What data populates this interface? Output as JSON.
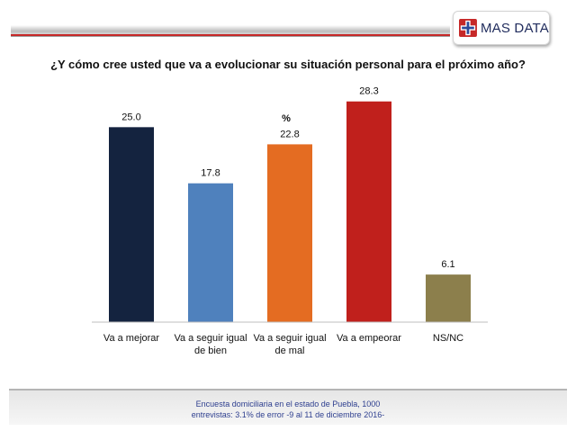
{
  "header": {
    "logo_text": "MAS DATA",
    "logo_icon": "medical-cross-icon",
    "accent_color": "#c62828"
  },
  "question": "¿Y cómo cree usted que va a evolucionar su situación personal para el próximo año?",
  "chart_data": {
    "type": "bar",
    "title": "%",
    "xlabel": "",
    "ylabel": "",
    "grid": false,
    "legend": "none",
    "ylim": [
      0,
      30
    ],
    "categories": [
      [
        "Va a mejorar"
      ],
      [
        "Va a seguir igual",
        "de bien"
      ],
      [
        "Va a seguir igual",
        "de mal"
      ],
      [
        "Va a empeorar"
      ],
      [
        "NS/NC"
      ]
    ],
    "values": [
      25.0,
      17.8,
      22.8,
      28.3,
      6.1
    ],
    "value_labels": [
      "25.0",
      "17.8",
      "22.8",
      "28.3",
      "6.1"
    ],
    "colors": [
      "#14233f",
      "#4f81bd",
      "#e46c22",
      "#c0201c",
      "#8c7f4c"
    ]
  },
  "footer": {
    "line1": "Encuesta domiciliaria en el estado de Puebla, 1000",
    "line2": "entrevistas: 3.1% de error -9 al 11 de diciembre 2016-"
  }
}
